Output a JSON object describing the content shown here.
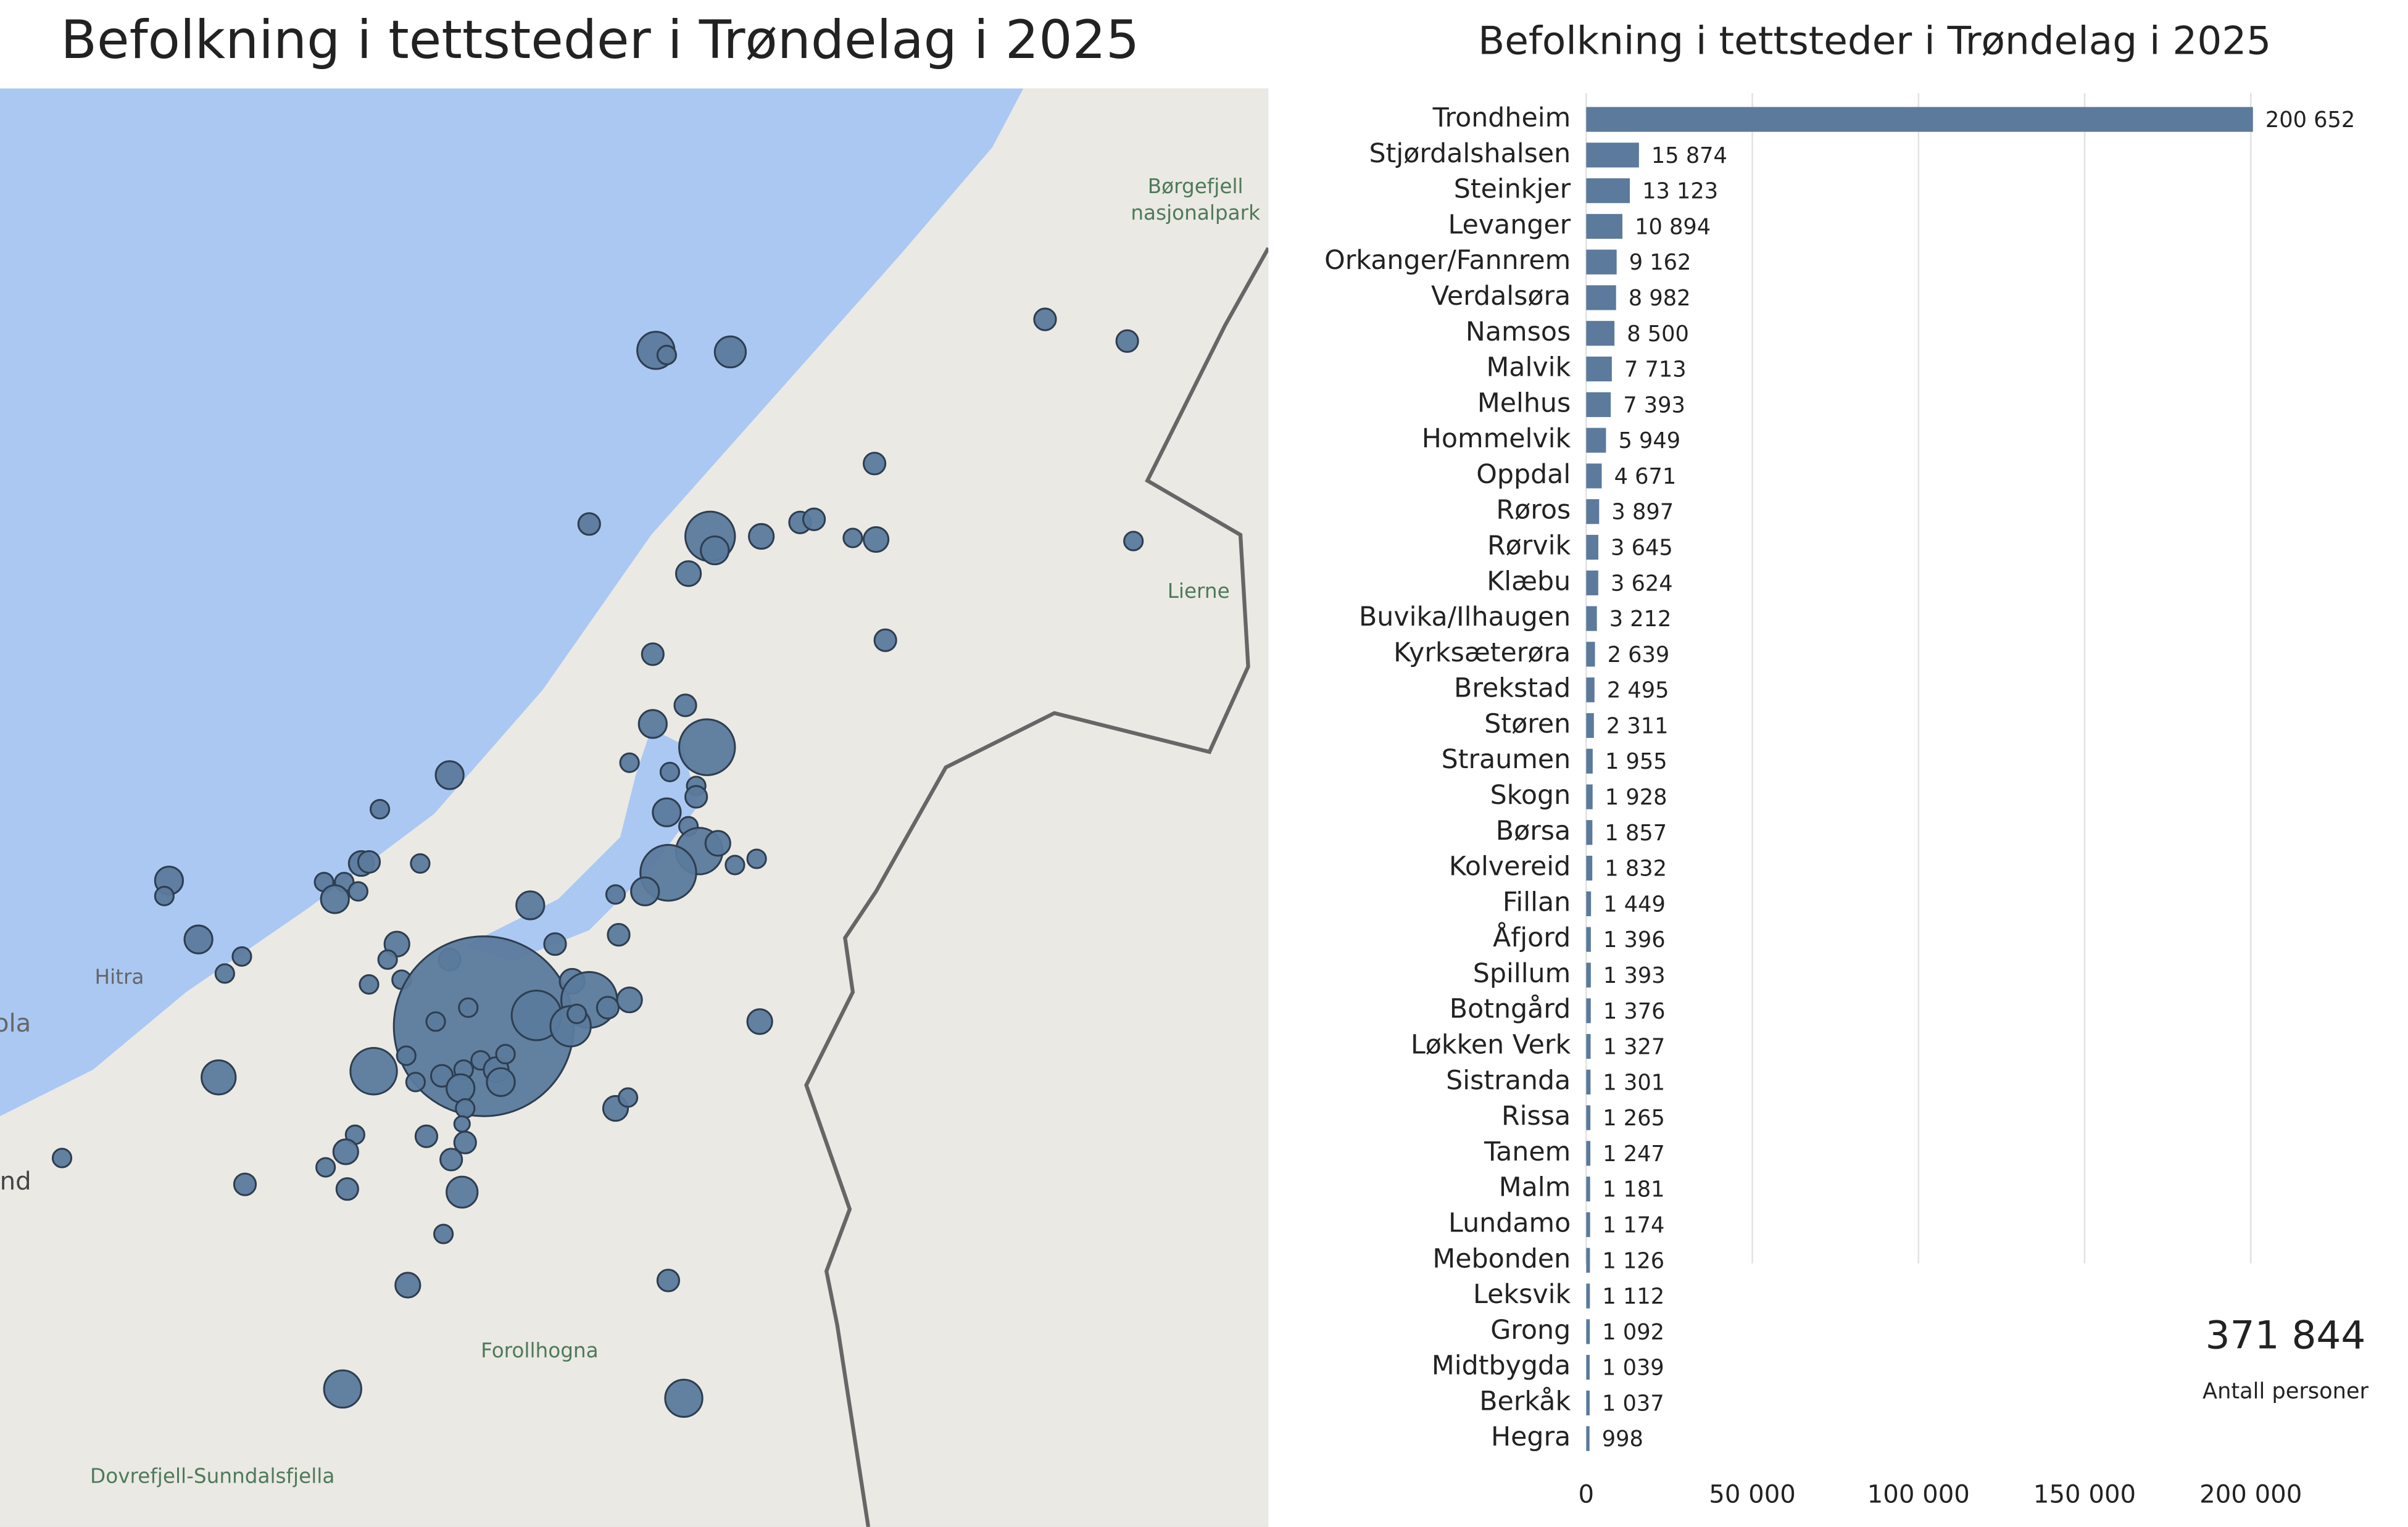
{
  "chart_data": [
    {
      "type": "map",
      "title": "Befolkning i tettsteder i Trøndelag i 2025",
      "labels": [
        "Børgefjell",
        "nasjonalpark",
        "Lierne",
        "Hitra",
        "ola",
        "nd",
        "Forollhogna",
        "Dovrefjell-Sunndalsfjella"
      ]
    },
    {
      "type": "bar",
      "title": "Befolkning i tettsteder i Trøndelag i 2025",
      "color": "#5b7a9c",
      "orientation": "horizontal",
      "grid": true,
      "categories": [
        "Trondheim",
        "Stjørdalshalsen",
        "Steinkjer",
        "Levanger",
        "Orkanger/Fannrem",
        "Verdalsøra",
        "Namsos",
        "Malvik",
        "Melhus",
        "Hommelvik",
        "Oppdal",
        "Røros",
        "Rørvik",
        "Klæbu",
        "Buvika/Ilhaugen",
        "Kyrksæterøra",
        "Brekstad",
        "Støren",
        "Straumen",
        "Skogn",
        "Børsa",
        "Kolvereid",
        "Fillan",
        "Åfjord",
        "Spillum",
        "Botngård",
        "Løkken Verk",
        "Sistranda",
        "Rissa",
        "Tanem",
        "Malm",
        "Lundamo",
        "Mebonden",
        "Leksvik",
        "Grong",
        "Midtbygda",
        "Berkåk",
        "Hegra"
      ],
      "values": [
        200652,
        15874,
        13123,
        10894,
        9162,
        8982,
        8500,
        7713,
        7393,
        5949,
        4671,
        3897,
        3645,
        3624,
        3212,
        2639,
        2495,
        2311,
        1955,
        1928,
        1857,
        1832,
        1449,
        1396,
        1393,
        1376,
        1327,
        1301,
        1265,
        1247,
        1181,
        1174,
        1126,
        1112,
        1092,
        1039,
        1037,
        998
      ],
      "value_labels": [
        "200 652",
        "15 874",
        "13 123",
        "10 894",
        "9 162",
        "8 982",
        "8 500",
        "7 713",
        "7 393",
        "5 949",
        "4 671",
        "3 897",
        "3 645",
        "3 624",
        "3 212",
        "2 639",
        "2 495",
        "2 311",
        "1 955",
        "1 928",
        "1 857",
        "1 832",
        "1 449",
        "1 396",
        "1 393",
        "1 376",
        "1 327",
        "1 301",
        "1 265",
        "1 247",
        "1 181",
        "1 174",
        "1 126",
        "1 112",
        "1 092",
        "1 039",
        "1 037",
        "998"
      ],
      "xlim": [
        0,
        200652
      ],
      "xticks": [
        0,
        {
          "value": 50000,
          "label": "50 000"
        },
        {
          "value": 100000,
          "label": "100 000"
        },
        {
          "value": 150000,
          "label": "150 000"
        },
        {
          "value": 200000,
          "label": "200 000"
        }
      ],
      "total": "371 844",
      "total_label": "Antall personer"
    }
  ]
}
